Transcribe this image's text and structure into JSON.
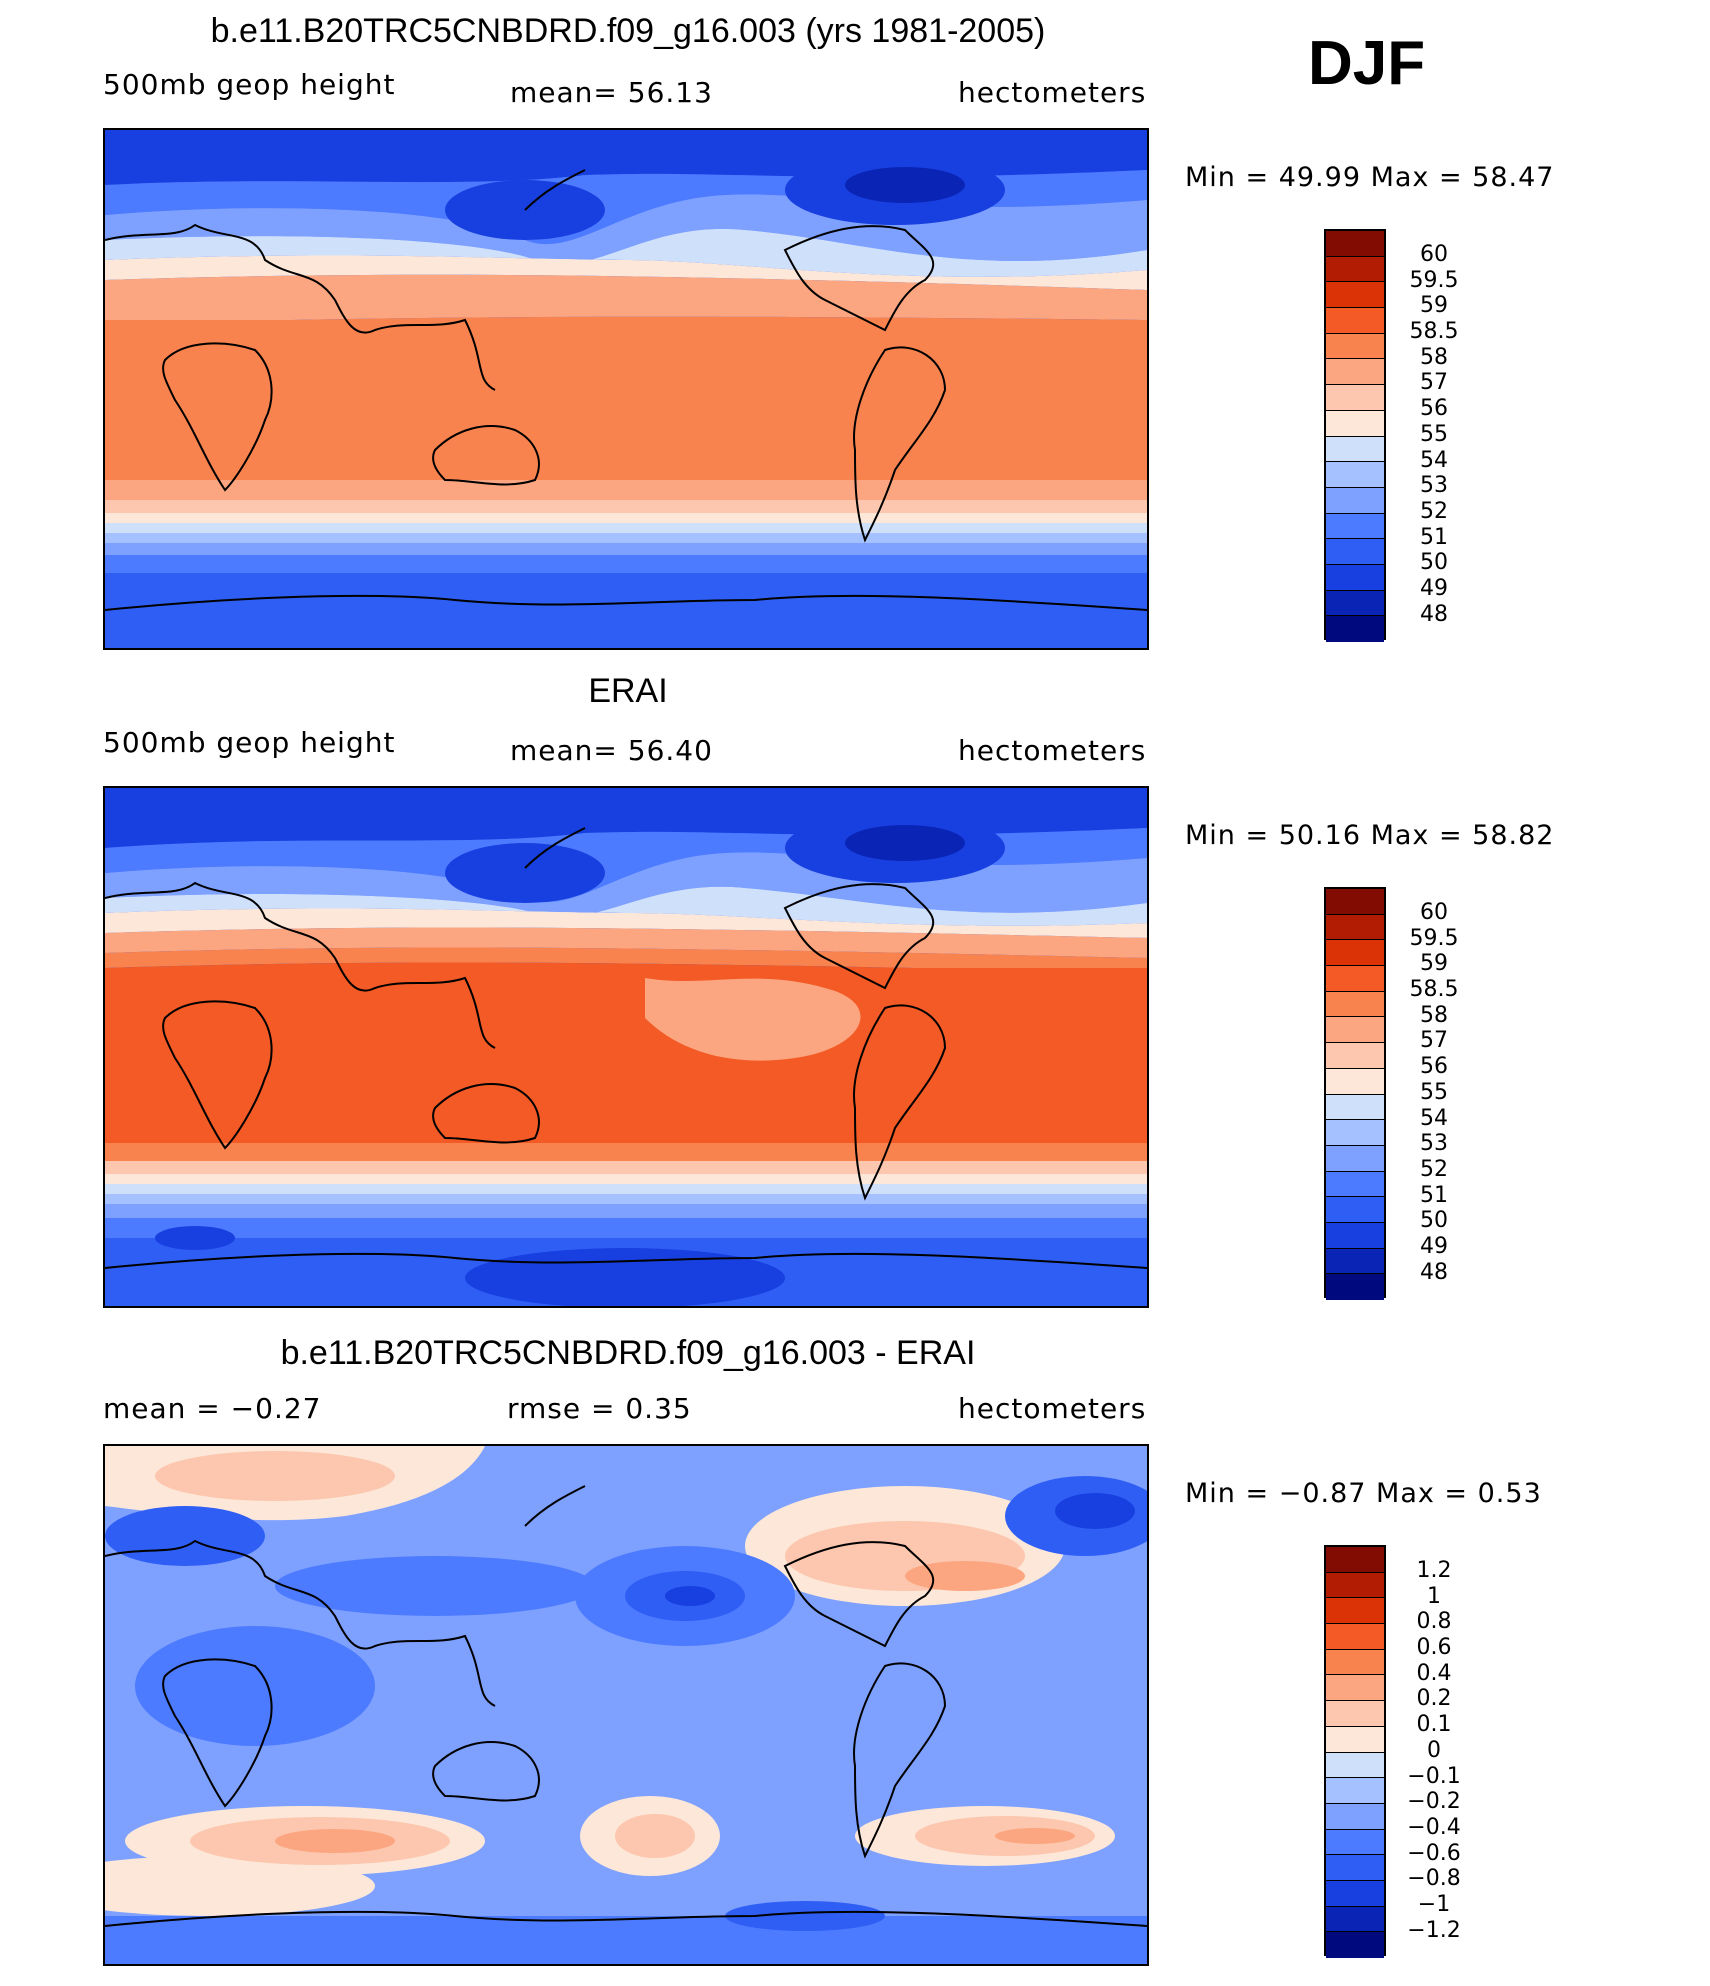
{
  "season": "DJF",
  "units_label": "hectometers",
  "colors": {
    "full": [
      "#000a7e",
      "#0a24b5",
      "#1840e0",
      "#2f5ef5",
      "#4d7bff",
      "#7ea1ff",
      "#a6c1ff",
      "#cfe0fb",
      "#fde7d8",
      "#fcc7ae",
      "#fba680",
      "#f9834f",
      "#f35a25",
      "#db3306",
      "#b21c03",
      "#830c02"
    ]
  },
  "panels": [
    {
      "title": "b.e11.B20TRC5CNBDRD.f09_g16.003 (yrs 1981-2005)",
      "left_label": "500mb  geop  height",
      "mid_label": "mean=   56.13",
      "right_label": "hectometers",
      "stats": "Min  =    49.99  Max  =    58.47",
      "levels": [
        "60",
        "59.5",
        "59",
        "58.5",
        "58",
        "57",
        "56",
        "55",
        "54",
        "53",
        "52",
        "51",
        "50",
        "49",
        "48"
      ]
    },
    {
      "title": "ERAI",
      "left_label": "500mb  geop  height",
      "mid_label": "mean=   56.40",
      "right_label": "hectometers",
      "stats": "Min  =    50.16  Max  =    58.82",
      "levels": [
        "60",
        "59.5",
        "59",
        "58.5",
        "58",
        "57",
        "56",
        "55",
        "54",
        "53",
        "52",
        "51",
        "50",
        "49",
        "48"
      ]
    },
    {
      "title": "b.e11.B20TRC5CNBDRD.f09_g16.003 - ERAI",
      "left_label": "mean  =    −0.27",
      "mid_label": "rmse  =     0.35",
      "right_label": "hectometers",
      "stats": "Min  =    −0.87  Max  =     0.53",
      "levels": [
        "1.2",
        "1",
        "0.8",
        "0.6",
        "0.4",
        "0.2",
        "0.1",
        "0",
        "−0.1",
        "−0.2",
        "−0.4",
        "−0.6",
        "−0.8",
        "−1",
        "−1.2"
      ]
    }
  ]
}
